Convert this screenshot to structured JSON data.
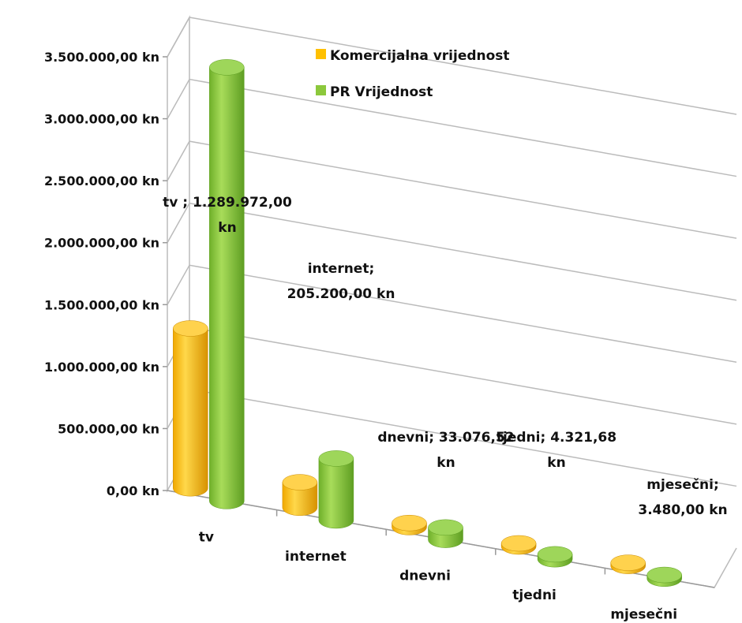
{
  "chart_data": {
    "type": "bar",
    "title": "",
    "xlabel": "",
    "ylabel": "",
    "ylim": [
      0,
      3500000
    ],
    "y_ticks": [
      "0,00 kn",
      "500.000,00 kn",
      "1.000.000,00 kn",
      "1.500.000,00 kn",
      "2.000.000,00 kn",
      "2.500.000,00 kn",
      "3.000.000,00 kn",
      "3.500.000,00 kn"
    ],
    "categories": [
      "tv",
      "internet",
      "dnevni",
      "tjedni",
      "mjesečni"
    ],
    "series": [
      {
        "name": "Komercijalna vrijednost",
        "values": [
          1289972,
          205200,
          33076.52,
          4321.68,
          3480
        ],
        "color": "#FFC000"
      },
      {
        "name": "PR Vrijednost",
        "values": [
          3500000,
          500000,
          100000,
          40000,
          30000
        ],
        "color": "#8CC83C"
      }
    ],
    "data_labels": [
      [
        "tv ; 1.289.972,00",
        "kn"
      ],
      [
        "internet;",
        "205.200,00 kn"
      ],
      [
        "dnevni; 33.076,52",
        "kn"
      ],
      [
        "tjedni; 4.321,68",
        "kn"
      ],
      [
        "mjesečni;",
        "3.480,00 kn"
      ]
    ],
    "legend_position": "top",
    "grid": true,
    "bar_shape": "cylinder-3d"
  }
}
